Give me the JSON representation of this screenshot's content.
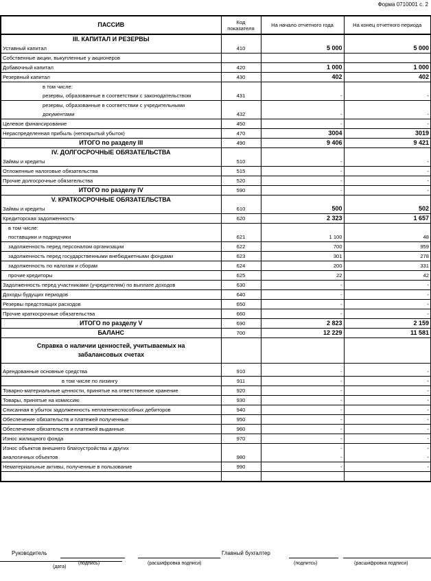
{
  "form_number": "Форма 0710001 с. 2",
  "header": {
    "title": "ПАССИВ",
    "code": "Код показателя",
    "start": "На начало отчетного года",
    "end": "На конец отчетного периода"
  },
  "rows": [
    {
      "kind": "section",
      "label": "III. КАПИТАЛ И РЕЗЕРВЫ"
    },
    {
      "kind": "item",
      "label": "Уставный капитал",
      "code": "410",
      "start": "5 000",
      "end": "5 000",
      "bold": true
    },
    {
      "kind": "item",
      "label": "Собственные акции, выкупленные у акционеров",
      "code": "",
      "start": "",
      "end": ""
    },
    {
      "kind": "item",
      "label": "Добавочный капитал",
      "code": "420",
      "start": "1 000",
      "end": "1 000",
      "bold": true
    },
    {
      "kind": "item",
      "label": "Резервный капитал",
      "code": "430",
      "start": "402",
      "end": "402",
      "bold": true
    },
    {
      "kind": "note",
      "label": "в том числе:",
      "indent": 1
    },
    {
      "kind": "item",
      "label": "резервы, образованные в соответствии с законодательством",
      "code": "431",
      "start": "-",
      "end": "-",
      "indent": 1
    },
    {
      "kind": "note",
      "label": "резервы, образованные в соответствии с учредительными",
      "indent": 1
    },
    {
      "kind": "item",
      "label": "документами",
      "code": "432",
      "start": "-",
      "end": "-",
      "indent": 1
    },
    {
      "kind": "item",
      "label": "Целевое финансирование",
      "code": "450",
      "start": "-",
      "end": "-"
    },
    {
      "kind": "item",
      "label": "Нераспределенная прибыль (непокрытый убыток)",
      "code": "470",
      "start": "3004",
      "end": "3019",
      "bold": true
    },
    {
      "kind": "total",
      "label": "ИТОГО по разделу III",
      "code": "490",
      "start": "9 406",
      "end": "9 421",
      "bold": true
    },
    {
      "kind": "section",
      "label": "IV. ДОЛГОСРОЧНЫЕ ОБЯЗАТЕЛЬСТВА"
    },
    {
      "kind": "item",
      "label": "Займы и кредиты",
      "code": "510",
      "start": "-",
      "end": "-"
    },
    {
      "kind": "item",
      "label": "Отложенные налоговые обязательства",
      "code": "515",
      "start": "-",
      "end": "-"
    },
    {
      "kind": "item",
      "label": "Прочие долгосрочные обязательства",
      "code": "520",
      "start": "-",
      "end": "-"
    },
    {
      "kind": "total",
      "label": "ИТОГО по разделу IV",
      "code": "590",
      "start": "-",
      "end": "-"
    },
    {
      "kind": "section",
      "label": "V. КРАТКОСРОЧНЫЕ ОБЯЗАТЕЛЬСТВА"
    },
    {
      "kind": "item",
      "label": "Займы и кредиты",
      "code": "610",
      "start": "500",
      "end": "502",
      "bold": true
    },
    {
      "kind": "item",
      "label": "Кредиторская задолженность",
      "code": "620",
      "start": "2 323",
      "end": "1 657",
      "bold": true
    },
    {
      "kind": "note",
      "label": "в том числе:",
      "indent": 2
    },
    {
      "kind": "item",
      "label": "поставщики и подрядчики",
      "code": "621",
      "start": "1 100",
      "end": "48",
      "indent": 2
    },
    {
      "kind": "item",
      "label": "задолженность перед персоналом организации",
      "code": "622",
      "start": "700",
      "end": "959",
      "indent": 2
    },
    {
      "kind": "item",
      "label": "задолженность перед государственными внебюджетными фондами",
      "code": "623",
      "start": "301",
      "end": "278",
      "indent": 2
    },
    {
      "kind": "item",
      "label": "задолженность по налогам и сборам",
      "code": "624",
      "start": "200",
      "end": "331",
      "indent": 2
    },
    {
      "kind": "item",
      "label": "прочие кредиторы",
      "code": "625",
      "start": "22",
      "end": "42",
      "indent": 2
    },
    {
      "kind": "item",
      "label": "Задолженность перед участниками (учредителям) по выплате доходов",
      "code": "630",
      "start": "-",
      "end": "-"
    },
    {
      "kind": "item",
      "label": "Доходы будущих периодов",
      "code": "640",
      "start": "-",
      "end": "-"
    },
    {
      "kind": "item",
      "label": "Резервы предстоящих расходов",
      "code": "650",
      "start": "-",
      "end": "-"
    },
    {
      "kind": "item",
      "label": "Прочие краткосрочные обязательства",
      "code": "660",
      "start": "-",
      "end": "-"
    },
    {
      "kind": "total",
      "label": "ИТОГО по разделу V",
      "code": "690",
      "start": "2 823",
      "end": "2 159",
      "bold": true
    },
    {
      "kind": "total",
      "label": "БАЛАНС",
      "code": "700",
      "start": "12 229",
      "end": "11 581",
      "bold": true
    },
    {
      "kind": "ref",
      "label": "Справка о наличии ценностей, учитываемых на забалансовых счетах"
    },
    {
      "kind": "item",
      "label": "Арендованные основные средства",
      "code": "910",
      "start": "-",
      "end": "-",
      "tall": true
    },
    {
      "kind": "item",
      "label": "в том числе по лизингу",
      "code": "911",
      "start": "-",
      "end": "-",
      "indent": 3
    },
    {
      "kind": "item",
      "label": "Товарно-материальные ценности, принятые на ответственное хранение",
      "code": "920",
      "start": "-",
      "end": "-"
    },
    {
      "kind": "item",
      "label": "Товары, принятые на комиссию",
      "code": "930",
      "start": "-",
      "end": "-"
    },
    {
      "kind": "item",
      "label": "Списанная в убыток задолженность неплатежеспособных дебиторов",
      "code": "940",
      "start": "-",
      "end": "-"
    },
    {
      "kind": "item",
      "label": "Обеспечение обязательств и платежей полученные",
      "code": "950",
      "start": "-",
      "end": "-"
    },
    {
      "kind": "item",
      "label": "Обеспечение обязательств и платежей выданные",
      "code": "960",
      "start": "-",
      "end": "-"
    },
    {
      "kind": "item",
      "label": "Износ жилищного фонда",
      "code": "970",
      "start": "-",
      "end": "-"
    },
    {
      "kind": "note",
      "label": "Износ объектов внешнего благоустройства и других",
      "code": "",
      "start": "-",
      "end": "-"
    },
    {
      "kind": "item",
      "label": "аналогичных объектов",
      "code": "980",
      "start": "-",
      "end": "-"
    },
    {
      "kind": "item",
      "label": "Нематериальные активы, полученные в пользование",
      "code": "990",
      "start": "-",
      "end": "-"
    },
    {
      "kind": "item",
      "label": "",
      "code": "",
      "start": "",
      "end": ""
    }
  ],
  "signatures": {
    "head": "Руководитель",
    "accountant": "Главный бухгалтер",
    "signature_caption": "(подпись)",
    "decode_caption_1": "(расшифровка подписи)",
    "signature_caption_2": "(подпитсь)",
    "decode_caption_2": "(расшифровка подписи)",
    "date_caption": "(дата)"
  }
}
